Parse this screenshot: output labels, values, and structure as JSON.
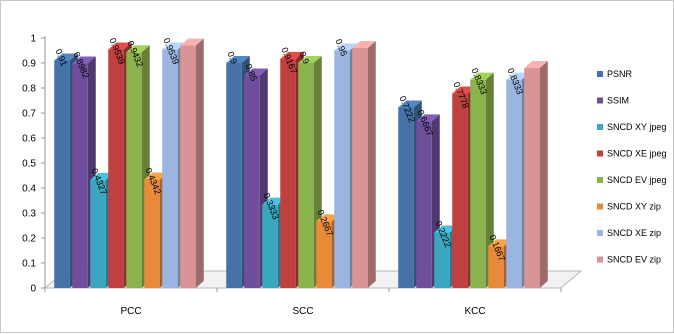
{
  "chart_data": {
    "type": "bar",
    "style": "3d-clustered-column",
    "categories": [
      "PCC",
      "SCC",
      "KCC"
    ],
    "ylim": [
      0,
      1
    ],
    "yticks": [
      "0",
      "0.1",
      "0.2",
      "0.3",
      "0.4",
      "0.5",
      "0.6",
      "0.7",
      "0.8",
      "0.9",
      "1"
    ],
    "grid": false,
    "legend_position": "right",
    "series": [
      {
        "name": "PSNR",
        "color": "#4572a7",
        "values": [
          0.91,
          0.9,
          0.7222
        ],
        "labels": [
          "0.91",
          "0.9",
          "0.7222"
        ]
      },
      {
        "name": "SSIM",
        "color": "#6f4f9c",
        "values": [
          0.8982,
          0.85,
          0.6667
        ],
        "labels": [
          "0.8982",
          "0.85",
          "0.6667"
        ]
      },
      {
        "name": "SNCD XY jpeg",
        "color": "#3aa6bf",
        "values": [
          0.4327,
          0.3333,
          0.2222
        ],
        "labels": [
          "0.4327",
          "0.3333",
          "0.2222"
        ]
      },
      {
        "name": "SNCD XE jpeg",
        "color": "#c0403f",
        "values": [
          0.9539,
          0.9167,
          0.7778
        ],
        "labels": [
          "0.9539",
          "0.9167",
          "0.7778"
        ]
      },
      {
        "name": "SNCD EV jpeg",
        "color": "#8bb34d",
        "values": [
          0.9432,
          0.9,
          0.8333
        ],
        "labels": [
          "0.9432",
          "0.9",
          "0.8333"
        ]
      },
      {
        "name": "SNCD XY zip",
        "color": "#e88a3a",
        "values": [
          0.4342,
          0.2667,
          0.1667
        ],
        "labels": [
          "0.4342",
          "0.2667",
          "0.1667"
        ]
      },
      {
        "name": "SNCD XE zip",
        "color": "#9cb4e0",
        "values": [
          0.9539,
          0.95,
          0.8333
        ],
        "labels": [
          "0.9539",
          "0.95",
          "0.8333"
        ]
      },
      {
        "name": "SNCD EV zip",
        "color": "#d99595",
        "values": [
          0.97,
          0.96,
          0.88
        ],
        "labels": [
          "",
          "",
          ""
        ]
      }
    ]
  }
}
